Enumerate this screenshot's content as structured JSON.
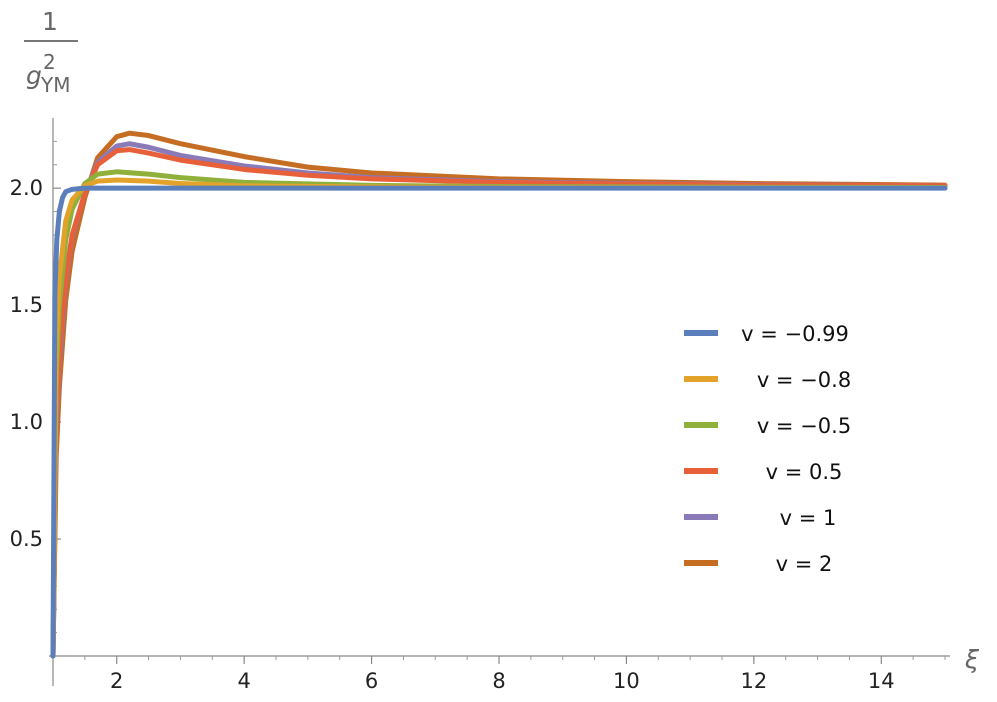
{
  "chart_data": {
    "type": "line",
    "title": "",
    "xlabel": "ξ",
    "ylabel": {
      "numerator": "1",
      "base": "g",
      "superscript": "2",
      "subscript": "YM"
    },
    "xlim": [
      0.9,
      15.5
    ],
    "ylim": [
      0,
      2.3
    ],
    "xticks": [
      2,
      4,
      6,
      8,
      10,
      12,
      14
    ],
    "yticks": [
      0.5,
      1.0,
      1.5,
      2.0
    ],
    "ytick_labels": [
      "0.5",
      "1.0",
      "1.5",
      "2.0"
    ],
    "grid": false,
    "legend_position": "right",
    "series": [
      {
        "name": "v = −0.99",
        "color": "#5b7fba",
        "x": [
          1.0,
          1.03,
          1.06,
          1.1,
          1.15,
          1.2,
          1.3,
          1.5,
          2.0,
          3.0,
          5.0,
          8.0,
          12.0,
          15.0
        ],
        "y": [
          0.0,
          1.55,
          1.78,
          1.9,
          1.96,
          1.985,
          1.995,
          2.0,
          2.0,
          2.0,
          2.0,
          2.0,
          2.0,
          2.0
        ]
      },
      {
        "name": "v = −0.8",
        "color": "#e3a32b",
        "x": [
          1.0,
          1.05,
          1.1,
          1.2,
          1.3,
          1.5,
          1.7,
          2.0,
          2.5,
          3.0,
          4.0,
          6.0,
          8.0,
          12.0,
          15.0
        ],
        "y": [
          0.0,
          1.35,
          1.62,
          1.86,
          1.95,
          2.01,
          2.03,
          2.035,
          2.03,
          2.02,
          2.01,
          2.005,
          2.003,
          2.002,
          2.001
        ]
      },
      {
        "name": "v = −0.5",
        "color": "#8fb03a",
        "x": [
          1.0,
          1.05,
          1.1,
          1.2,
          1.3,
          1.5,
          1.7,
          2.0,
          2.5,
          3.0,
          4.0,
          6.0,
          8.0,
          12.0,
          15.0
        ],
        "y": [
          0.0,
          1.2,
          1.5,
          1.78,
          1.91,
          2.02,
          2.06,
          2.07,
          2.06,
          2.045,
          2.025,
          2.012,
          2.007,
          2.004,
          2.003
        ]
      },
      {
        "name": "v = 0.5",
        "color": "#e8603a",
        "x": [
          1.0,
          1.05,
          1.1,
          1.2,
          1.3,
          1.5,
          1.7,
          2.0,
          2.2,
          2.5,
          3.0,
          4.0,
          5.0,
          6.0,
          8.0,
          10.0,
          12.0,
          15.0
        ],
        "y": [
          0.0,
          1.0,
          1.3,
          1.62,
          1.8,
          1.98,
          2.1,
          2.16,
          2.165,
          2.15,
          2.12,
          2.08,
          2.055,
          2.04,
          2.025,
          2.018,
          2.013,
          2.01
        ]
      },
      {
        "name": "v = 1",
        "color": "#8a7ab8",
        "x": [
          1.0,
          1.05,
          1.1,
          1.2,
          1.3,
          1.5,
          1.7,
          2.0,
          2.2,
          2.5,
          3.0,
          4.0,
          5.0,
          6.0,
          8.0,
          10.0,
          12.0,
          15.0
        ],
        "y": [
          0.0,
          0.95,
          1.25,
          1.6,
          1.79,
          1.98,
          2.11,
          2.18,
          2.19,
          2.175,
          2.14,
          2.095,
          2.065,
          2.045,
          2.028,
          2.02,
          2.015,
          2.01
        ]
      },
      {
        "name": "v = 2",
        "color": "#c56d22",
        "x": [
          1.0,
          1.05,
          1.1,
          1.2,
          1.3,
          1.5,
          1.7,
          2.0,
          2.2,
          2.5,
          3.0,
          4.0,
          5.0,
          6.0,
          8.0,
          10.0,
          12.0,
          15.0
        ],
        "y": [
          0.0,
          0.85,
          1.15,
          1.52,
          1.73,
          1.96,
          2.13,
          2.22,
          2.235,
          2.225,
          2.19,
          2.135,
          2.09,
          2.065,
          2.04,
          2.028,
          2.02,
          2.013
        ]
      }
    ]
  }
}
